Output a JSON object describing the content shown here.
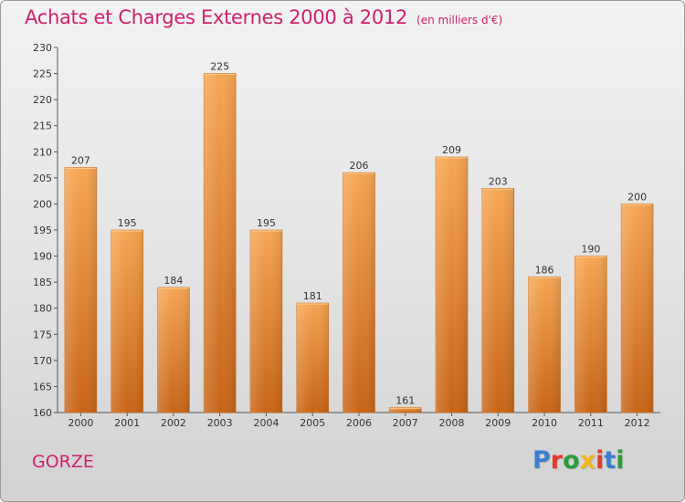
{
  "header": {
    "title": "Achats et Charges Externes 2000 à 2012",
    "unit": "(en milliers d'€)"
  },
  "footer": {
    "city": "GORZE",
    "logo_text": "Proxiti",
    "logo_colors": [
      "#3a7fd0",
      "#e23b2a",
      "#2a9d3a",
      "#f2b51f",
      "#e23b2a",
      "#3a7fd0",
      "#2a9d3a"
    ]
  },
  "chart_data": {
    "type": "bar",
    "categories": [
      "2000",
      "2001",
      "2002",
      "2003",
      "2004",
      "2005",
      "2006",
      "2007",
      "2008",
      "2009",
      "2010",
      "2011",
      "2012"
    ],
    "values": [
      207,
      195,
      184,
      225,
      195,
      181,
      206,
      161,
      209,
      203,
      186,
      190,
      200
    ],
    "ylim": [
      160,
      230
    ],
    "yticks": [
      160,
      165,
      170,
      175,
      180,
      185,
      190,
      195,
      200,
      205,
      210,
      215,
      220,
      225,
      230
    ],
    "grid": false,
    "bar_color": "#f0973f"
  }
}
